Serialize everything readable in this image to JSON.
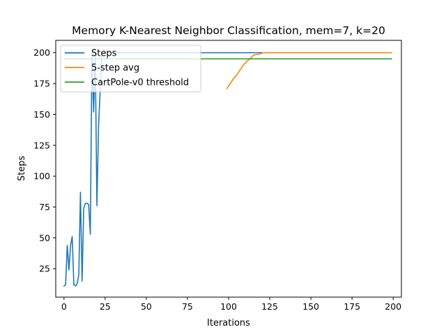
{
  "chart_data": {
    "type": "line",
    "title": "Memory K-Nearest Neighbor Classification, mem=7, k=20",
    "xlabel": "Iterations",
    "ylabel": "Steps",
    "xlim": [
      -5,
      205
    ],
    "ylim": [
      2,
      210
    ],
    "xticks": [
      0,
      25,
      50,
      75,
      100,
      125,
      150,
      175,
      200
    ],
    "yticks": [
      25,
      50,
      75,
      100,
      125,
      150,
      175,
      200
    ],
    "grid": false,
    "legend_position": "upper-left",
    "series": [
      {
        "name": "Steps",
        "color": "#1f77b4",
        "points": [
          [
            0,
            11
          ],
          [
            1,
            12
          ],
          [
            2,
            44
          ],
          [
            3,
            24
          ],
          [
            4,
            44
          ],
          [
            5,
            51
          ],
          [
            6,
            12
          ],
          [
            7,
            11
          ],
          [
            8,
            13
          ],
          [
            9,
            20
          ],
          [
            10,
            87
          ],
          [
            11,
            15
          ],
          [
            12,
            74
          ],
          [
            13,
            78
          ],
          [
            14,
            78
          ],
          [
            15,
            77
          ],
          [
            16,
            53
          ],
          [
            17,
            200
          ],
          [
            18,
            152
          ],
          [
            19,
            200
          ],
          [
            20,
            76
          ],
          [
            21,
            140
          ],
          [
            22,
            170
          ],
          [
            23,
            200
          ],
          [
            24,
            200
          ],
          [
            25,
            200
          ],
          [
            199,
            200
          ]
        ]
      },
      {
        "name": "5-step avg",
        "color": "#ff7f0e",
        "points": [
          [
            99,
            171
          ],
          [
            101,
            175
          ],
          [
            103,
            179
          ],
          [
            105,
            182
          ],
          [
            107,
            186
          ],
          [
            109,
            190
          ],
          [
            111,
            193
          ],
          [
            113,
            195
          ],
          [
            115,
            198
          ],
          [
            117,
            198.5
          ],
          [
            119,
            199
          ],
          [
            121,
            200
          ],
          [
            130,
            200
          ],
          [
            150,
            200
          ],
          [
            175,
            200
          ],
          [
            199,
            200
          ]
        ]
      },
      {
        "name": "CartPole-v0 threshold",
        "color": "#2ca02c",
        "points": [
          [
            0,
            195
          ],
          [
            199,
            195
          ]
        ]
      }
    ]
  }
}
